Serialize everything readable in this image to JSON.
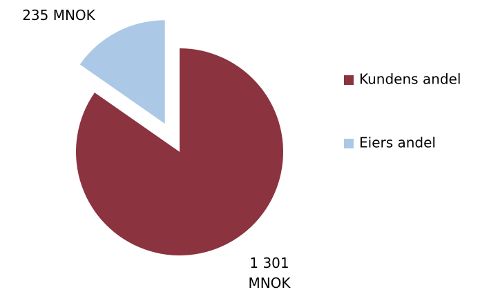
{
  "chart_data": {
    "type": "pie",
    "categories": [
      "Kundens andel",
      "Eiers andel"
    ],
    "values": [
      1301,
      235
    ],
    "value_labels": [
      "1 301 MNOK",
      "235 MNOK"
    ],
    "colors": [
      "#8b333f",
      "#abc9e6"
    ],
    "exploded": [
      false,
      true
    ],
    "legend": "right"
  }
}
